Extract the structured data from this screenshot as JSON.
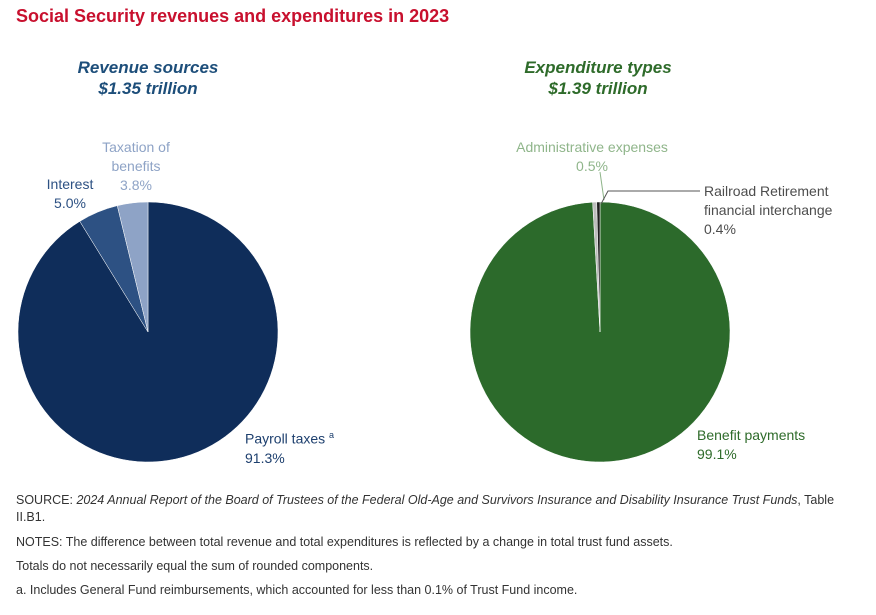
{
  "title": "Social Security revenues and expenditures in 2023",
  "chart_data": [
    {
      "type": "pie",
      "title": "Revenue sources",
      "subtitle": "$1.35 trillion",
      "slices": [
        {
          "label": "Payroll taxes",
          "footnote_marker": "a",
          "value": 91.3,
          "value_label": "91.3%",
          "color": "#0f2d5a"
        },
        {
          "label": "Interest",
          "value": 5.0,
          "value_label": "5.0%",
          "color": "#2d5183"
        },
        {
          "label": "Taxation of benefits",
          "value": 3.8,
          "value_label": "3.8%",
          "color": "#8ea3c6"
        }
      ]
    },
    {
      "type": "pie",
      "title": "Expenditure types",
      "subtitle": "$1.39 trillion",
      "slices": [
        {
          "label": "Benefit payments",
          "value": 99.1,
          "value_label": "99.1%",
          "color": "#2c6a2b"
        },
        {
          "label": "Administrative expenses",
          "value": 0.5,
          "value_label": "0.5%",
          "color": "#bdbdbd"
        },
        {
          "label": "Railroad Retirement financial interchange",
          "value": 0.4,
          "value_label": "0.4%",
          "color": "#1f1f1f"
        }
      ]
    }
  ],
  "labels": {
    "tax_line1": "Taxation of",
    "tax_line2": "benefits",
    "rr_line1": "Railroad Retirement",
    "rr_line2": "financial interchange"
  },
  "colors": {
    "title_red": "#c8102e",
    "revenue_heading": "#1d4e7a",
    "expenditure_heading": "#2e6b2a",
    "label_payroll": "#1d3f6e",
    "label_interest": "#2d5183",
    "label_taxation": "#8ea3c6",
    "label_benefit": "#2e6b2a",
    "label_admin": "#8fb58a",
    "label_railroad": "#4d4d4d"
  },
  "footer": {
    "source_prefix": "SOURCE: ",
    "source_italic": "2024 Annual Report of the Board of Trustees of the Federal Old-Age and Survivors Insurance and Disability Insurance Trust Funds",
    "source_suffix": ", Table II.B1.",
    "notes": "NOTES: The difference between total revenue and total expenditures is reflected by a change in total trust fund assets.",
    "totals": "Totals do not necessarily equal the sum of rounded components.",
    "footnote_a": "a.  Includes General Fund reimbursements, which accounted for less than 0.1% of Trust Fund income."
  }
}
